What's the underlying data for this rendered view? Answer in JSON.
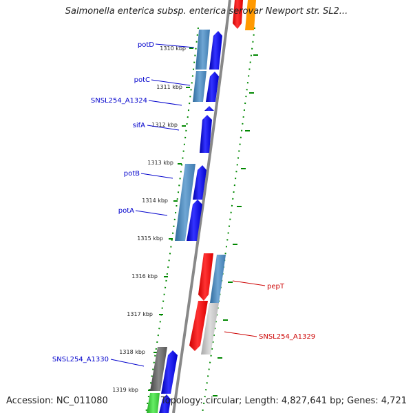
{
  "title": "Salmonella enterica subsp. enterica serovar Newport str. SL2...",
  "accession": "Accession: NC_011080",
  "topology": "Topology: circular; Length: 4,827,641 bp; Genes: 4,721",
  "ticks": [
    "1310 kbp",
    "1311 kbp",
    "1312 kbp",
    "1313 kbp",
    "1314 kbp",
    "1315 kbp",
    "1316 kbp",
    "1317 kbp",
    "1318 kbp",
    "1319 kbp"
  ],
  "genes": [
    {
      "name": "potD",
      "color": "#0000cc"
    },
    {
      "name": "potC",
      "color": "#0000cc"
    },
    {
      "name": "SNSL254_A1324",
      "color": "#0000cc"
    },
    {
      "name": "sifA",
      "color": "#0000cc"
    },
    {
      "name": "potB",
      "color": "#0000cc"
    },
    {
      "name": "potA",
      "color": "#0000cc"
    },
    {
      "name": "pepT",
      "color": "#cc0000"
    },
    {
      "name": "SNSL254_A1329",
      "color": "#cc0000"
    },
    {
      "name": "SNSL254_A1330",
      "color": "#0000cc"
    }
  ],
  "colors": {
    "forward_cds": "#0000ff",
    "reverse_cds": "#ff0000",
    "cog_blue": "#4a86b8",
    "cog_grey": "#bbbbbb",
    "cog_dark": "#555555",
    "cog_green": "#33cc33",
    "cog_orange": "#ff9900",
    "backbone": "#888888",
    "gc_skew_dots": "#008800",
    "tick": "#008800"
  }
}
